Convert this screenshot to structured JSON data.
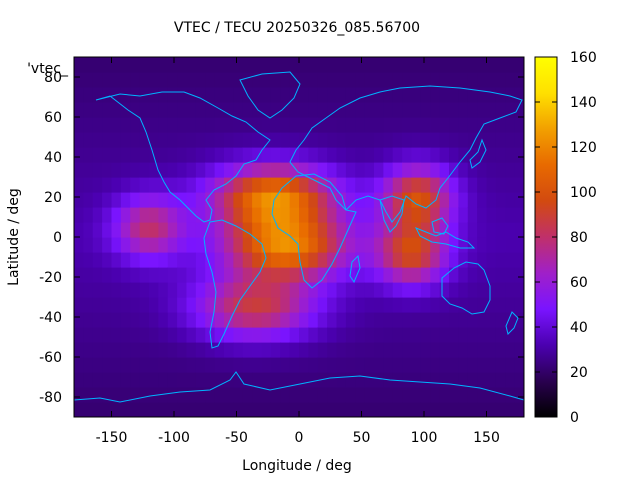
{
  "chart_data": {
    "type": "heatmap",
    "title": "VTEC / TECU 20250326_085.56700",
    "xlabel": "Longitude / deg",
    "ylabel": "Latitude / deg",
    "xlim": [
      -180,
      180
    ],
    "ylim": [
      -90,
      90
    ],
    "xticks": [
      -150,
      -100,
      -50,
      0,
      50,
      100,
      150
    ],
    "xtick_labels": [
      "-150",
      "-100",
      "-50",
      "0",
      "50",
      "100",
      "150"
    ],
    "yticks": [
      -80,
      -60,
      -40,
      -20,
      0,
      20,
      40,
      60,
      80
    ],
    "ytick_labels": [
      "-80",
      "-60",
      "-40",
      "-20",
      "0",
      "20",
      "40",
      "60",
      "80"
    ],
    "colorbar": {
      "range": [
        0,
        160
      ],
      "ticks": [
        0,
        20,
        40,
        60,
        80,
        100,
        120,
        140,
        160
      ],
      "tick_labels": [
        "0",
        "20",
        "40",
        "60",
        "80",
        "100",
        "120",
        "140",
        "160"
      ],
      "palette": [
        "#000000",
        "#2a0050",
        "#4b00b0",
        "#7a14ff",
        "#a020c8",
        "#c0306a",
        "#d24a10",
        "#e86a00",
        "#f2a000",
        "#ffe000",
        "#ffff00"
      ]
    },
    "legend_entry": "'vtec_",
    "coastline_color": "#00b4ff",
    "grid": false,
    "approx_tec_field": {
      "background_tecu": 32,
      "features": [
        {
          "name": "equatorial anomaly north crest",
          "lon": -20,
          "lat": 20,
          "peak_tecu": 120
        },
        {
          "name": "equatorial anomaly south crest",
          "lon": -10,
          "lat": -5,
          "peak_tecu": 115
        },
        {
          "name": "southern Atlantic enhancement",
          "lon": -35,
          "lat": -35,
          "peak_tecu": 90
        },
        {
          "name": "Asia crest north",
          "lon": 95,
          "lat": 20,
          "peak_tecu": 100
        },
        {
          "name": "Asia crest south",
          "lon": 90,
          "lat": -8,
          "peak_tecu": 95
        },
        {
          "name": "Pacific westward tail",
          "lon": -120,
          "lat": 5,
          "peak_tecu": 80
        }
      ]
    }
  }
}
